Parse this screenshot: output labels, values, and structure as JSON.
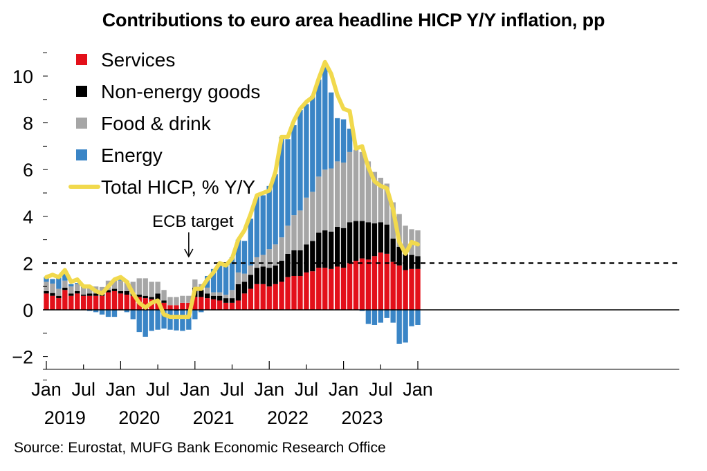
{
  "title": "Contributions to euro area headline HICP Y/Y inflation, pp",
  "source": "Source: Eurostat, MUFG Bank Economic Research Office",
  "colors": {
    "services": "#e3101a",
    "nonenergy": "#000000",
    "food": "#a6a6a6",
    "energy": "#3a85c6",
    "total": "#f1d94d"
  },
  "chart_data": {
    "type": "bar",
    "stacked": true,
    "title": "Contributions to euro area headline HICP Y/Y inflation, pp",
    "x": [
      "2019-01",
      "2019-02",
      "2019-03",
      "2019-04",
      "2019-05",
      "2019-06",
      "2019-07",
      "2019-08",
      "2019-09",
      "2019-10",
      "2019-11",
      "2019-12",
      "2020-01",
      "2020-02",
      "2020-03",
      "2020-04",
      "2020-05",
      "2020-06",
      "2020-07",
      "2020-08",
      "2020-09",
      "2020-10",
      "2020-11",
      "2020-12",
      "2021-01",
      "2021-02",
      "2021-03",
      "2021-04",
      "2021-05",
      "2021-06",
      "2021-07",
      "2021-08",
      "2021-09",
      "2021-10",
      "2021-11",
      "2021-12",
      "2022-01",
      "2022-02",
      "2022-03",
      "2022-04",
      "2022-05",
      "2022-06",
      "2022-07",
      "2022-08",
      "2022-09",
      "2022-10",
      "2022-11",
      "2022-12",
      "2023-01",
      "2023-02",
      "2023-03",
      "2023-04",
      "2023-05",
      "2023-06",
      "2023-07",
      "2023-08",
      "2023-09",
      "2023-10",
      "2023-11",
      "2023-12",
      "2024-01"
    ],
    "x_tick_labels": [
      {
        "month": "2019-01",
        "label": "Jan"
      },
      {
        "month": "2019-07",
        "label": "Jul"
      },
      {
        "month": "2020-01",
        "label": "Jan"
      },
      {
        "month": "2020-07",
        "label": "Jul"
      },
      {
        "month": "2021-01",
        "label": "Jan"
      },
      {
        "month": "2021-07",
        "label": "Jul"
      },
      {
        "month": "2022-01",
        "label": "Jan"
      },
      {
        "month": "2022-07",
        "label": "Jul"
      },
      {
        "month": "2023-01",
        "label": "Jan"
      },
      {
        "month": "2023-07",
        "label": "Jul"
      },
      {
        "month": "2024-01",
        "label": "Jan"
      }
    ],
    "year_labels": [
      {
        "month": "2019-04",
        "label": "2019"
      },
      {
        "month": "2020-04",
        "label": "2020"
      },
      {
        "month": "2021-04",
        "label": "2021"
      },
      {
        "month": "2022-04",
        "label": "2022"
      },
      {
        "month": "2023-04",
        "label": "2023"
      }
    ],
    "ylim": [
      -2.5,
      11
    ],
    "yticks": [
      -2,
      0,
      2,
      4,
      6,
      8,
      10
    ],
    "series": [
      {
        "name": "Services",
        "key": "services",
        "kind": "bar",
        "values": [
          0.7,
          0.6,
          0.5,
          0.85,
          0.6,
          0.7,
          0.6,
          0.6,
          0.6,
          0.6,
          0.75,
          0.8,
          0.7,
          0.65,
          0.6,
          0.55,
          0.5,
          0.45,
          0.4,
          0.3,
          0.2,
          0.2,
          0.3,
          0.3,
          0.55,
          0.55,
          0.5,
          0.45,
          0.4,
          0.3,
          0.3,
          0.4,
          0.7,
          0.9,
          1.1,
          1.1,
          1.0,
          1.1,
          1.2,
          1.4,
          1.45,
          1.45,
          1.6,
          1.65,
          1.8,
          1.8,
          1.75,
          1.85,
          1.8,
          2.0,
          2.1,
          2.2,
          2.15,
          2.3,
          2.45,
          2.4,
          2.05,
          1.9,
          1.7,
          1.75,
          1.75
        ]
      },
      {
        "name": "Non-energy goods",
        "key": "nonenergy",
        "kind": "bar",
        "values": [
          0.1,
          0.12,
          0.1,
          0.1,
          0.1,
          0.1,
          0.05,
          0.1,
          0.1,
          0.08,
          0.1,
          0.1,
          0.1,
          0.15,
          0.1,
          0.1,
          0.1,
          0.1,
          0.3,
          0.1,
          0.0,
          -0.03,
          0.0,
          0.0,
          0.4,
          0.3,
          0.2,
          0.15,
          0.2,
          0.2,
          0.2,
          0.7,
          0.5,
          0.6,
          0.7,
          0.75,
          0.8,
          0.8,
          0.9,
          1.0,
          1.1,
          1.1,
          1.2,
          1.3,
          1.5,
          1.6,
          1.6,
          1.7,
          1.7,
          1.75,
          1.7,
          1.6,
          1.6,
          1.4,
          1.3,
          1.25,
          1.0,
          0.8,
          0.7,
          0.6,
          0.55
        ]
      },
      {
        "name": "Food & drink",
        "key": "food",
        "kind": "bar",
        "values": [
          0.4,
          0.4,
          0.3,
          0.3,
          0.3,
          0.3,
          0.3,
          0.3,
          0.3,
          0.3,
          0.4,
          0.4,
          0.45,
          0.45,
          0.5,
          0.7,
          0.75,
          0.65,
          0.5,
          0.45,
          0.35,
          0.35,
          0.3,
          0.3,
          0.35,
          0.25,
          0.25,
          0.15,
          0.15,
          0.15,
          0.35,
          0.5,
          0.35,
          0.4,
          0.45,
          0.5,
          0.8,
          0.9,
          1.0,
          1.2,
          1.5,
          1.7,
          2.0,
          2.1,
          2.4,
          2.6,
          2.7,
          2.8,
          2.8,
          3.0,
          3.05,
          2.95,
          2.6,
          2.2,
          1.9,
          1.75,
          1.55,
          1.4,
          1.2,
          1.1,
          1.1
        ]
      },
      {
        "name": "Energy",
        "key": "energy",
        "kind": "bar",
        "values": [
          0.2,
          0.2,
          0.5,
          0.3,
          0.1,
          0.05,
          0.05,
          -0.05,
          -0.1,
          -0.2,
          -0.3,
          -0.3,
          0.05,
          -0.1,
          -0.4,
          -0.95,
          -1.15,
          -0.9,
          -0.85,
          -0.8,
          -0.85,
          -0.85,
          -0.9,
          -0.85,
          -0.4,
          -0.1,
          0.5,
          1.0,
          1.25,
          1.3,
          1.4,
          1.4,
          1.4,
          2.0,
          2.6,
          2.55,
          2.7,
          3.0,
          4.3,
          3.7,
          3.85,
          4.3,
          4.0,
          4.1,
          4.15,
          4.4,
          3.25,
          1.85,
          1.85,
          1.0,
          0.0,
          -0.05,
          -0.6,
          -0.65,
          -0.55,
          -0.35,
          -0.55,
          -1.45,
          -1.4,
          -0.7,
          -0.65
        ]
      },
      {
        "name": "Total HICP, % Y/Y",
        "key": "total",
        "kind": "line",
        "values": [
          1.4,
          1.5,
          1.4,
          1.7,
          1.2,
          1.3,
          1.0,
          1.0,
          0.8,
          0.7,
          1.0,
          1.3,
          1.4,
          1.2,
          0.7,
          0.3,
          0.1,
          0.3,
          0.4,
          -0.2,
          -0.3,
          -0.3,
          -0.3,
          -0.3,
          0.9,
          0.9,
          1.3,
          1.6,
          2.0,
          1.9,
          2.2,
          3.0,
          3.4,
          4.1,
          4.9,
          5.0,
          5.1,
          5.9,
          7.4,
          7.4,
          8.1,
          8.6,
          8.9,
          9.1,
          9.9,
          10.6,
          10.1,
          9.2,
          8.6,
          8.5,
          6.9,
          7.0,
          6.1,
          5.5,
          5.3,
          5.2,
          4.3,
          2.9,
          2.4,
          2.9,
          2.8
        ]
      }
    ],
    "reference_line": {
      "value": 2,
      "label": "ECB target",
      "style": "dashed"
    },
    "legend_position": "top-left"
  }
}
